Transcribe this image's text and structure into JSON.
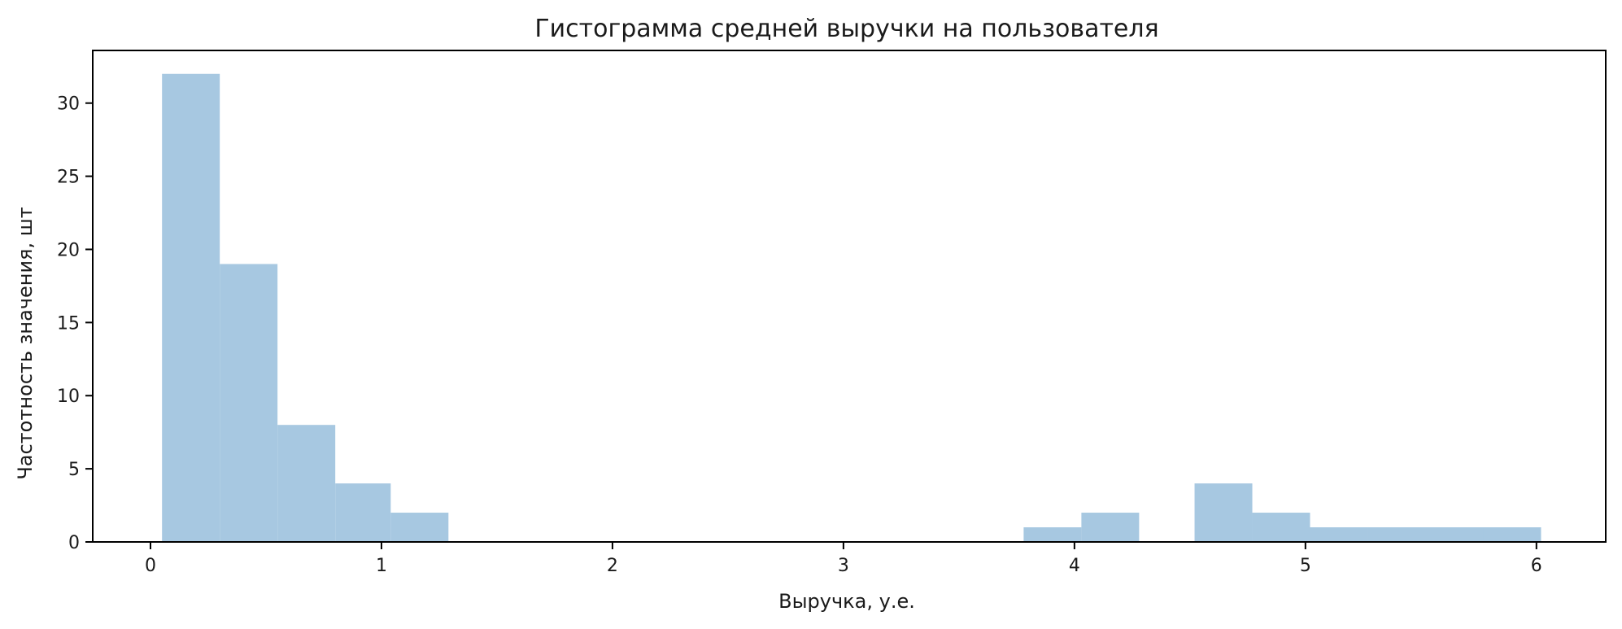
{
  "chart_data": {
    "type": "bar",
    "title": "Гистограмма средней выручки на пользователя",
    "xlabel": "Выручка, у.е.",
    "ylabel": "Частотность значения, шт",
    "xlim": [
      -0.25,
      6.3
    ],
    "ylim": [
      0,
      33.6
    ],
    "xticks": [
      0,
      1,
      2,
      3,
      4,
      5,
      6
    ],
    "yticks": [
      0,
      5,
      10,
      15,
      20,
      25,
      30
    ],
    "grid": false,
    "bar_color": "#a7c8e1",
    "bins": [
      {
        "x0": 0.05,
        "x1": 0.3,
        "count": 32
      },
      {
        "x0": 0.3,
        "x1": 0.55,
        "count": 19
      },
      {
        "x0": 0.55,
        "x1": 0.8,
        "count": 8
      },
      {
        "x0": 0.8,
        "x1": 1.04,
        "count": 4
      },
      {
        "x0": 1.04,
        "x1": 1.29,
        "count": 2
      },
      {
        "x0": 1.29,
        "x1": 1.54,
        "count": 0
      },
      {
        "x0": 1.54,
        "x1": 1.79,
        "count": 0
      },
      {
        "x0": 1.79,
        "x1": 2.04,
        "count": 0
      },
      {
        "x0": 2.04,
        "x1": 2.29,
        "count": 0
      },
      {
        "x0": 2.29,
        "x1": 2.54,
        "count": 0
      },
      {
        "x0": 2.54,
        "x1": 2.78,
        "count": 0
      },
      {
        "x0": 2.78,
        "x1": 3.03,
        "count": 0
      },
      {
        "x0": 3.03,
        "x1": 3.28,
        "count": 0
      },
      {
        "x0": 3.28,
        "x1": 3.53,
        "count": 0
      },
      {
        "x0": 3.53,
        "x1": 3.78,
        "count": 0
      },
      {
        "x0": 3.78,
        "x1": 4.03,
        "count": 1
      },
      {
        "x0": 4.03,
        "x1": 4.28,
        "count": 2
      },
      {
        "x0": 4.28,
        "x1": 4.52,
        "count": 0
      },
      {
        "x0": 4.52,
        "x1": 4.77,
        "count": 4
      },
      {
        "x0": 4.77,
        "x1": 5.02,
        "count": 2
      },
      {
        "x0": 5.02,
        "x1": 5.27,
        "count": 1
      },
      {
        "x0": 5.27,
        "x1": 5.52,
        "count": 1
      },
      {
        "x0": 5.52,
        "x1": 5.77,
        "count": 1
      },
      {
        "x0": 5.77,
        "x1": 6.02,
        "count": 1
      }
    ]
  }
}
